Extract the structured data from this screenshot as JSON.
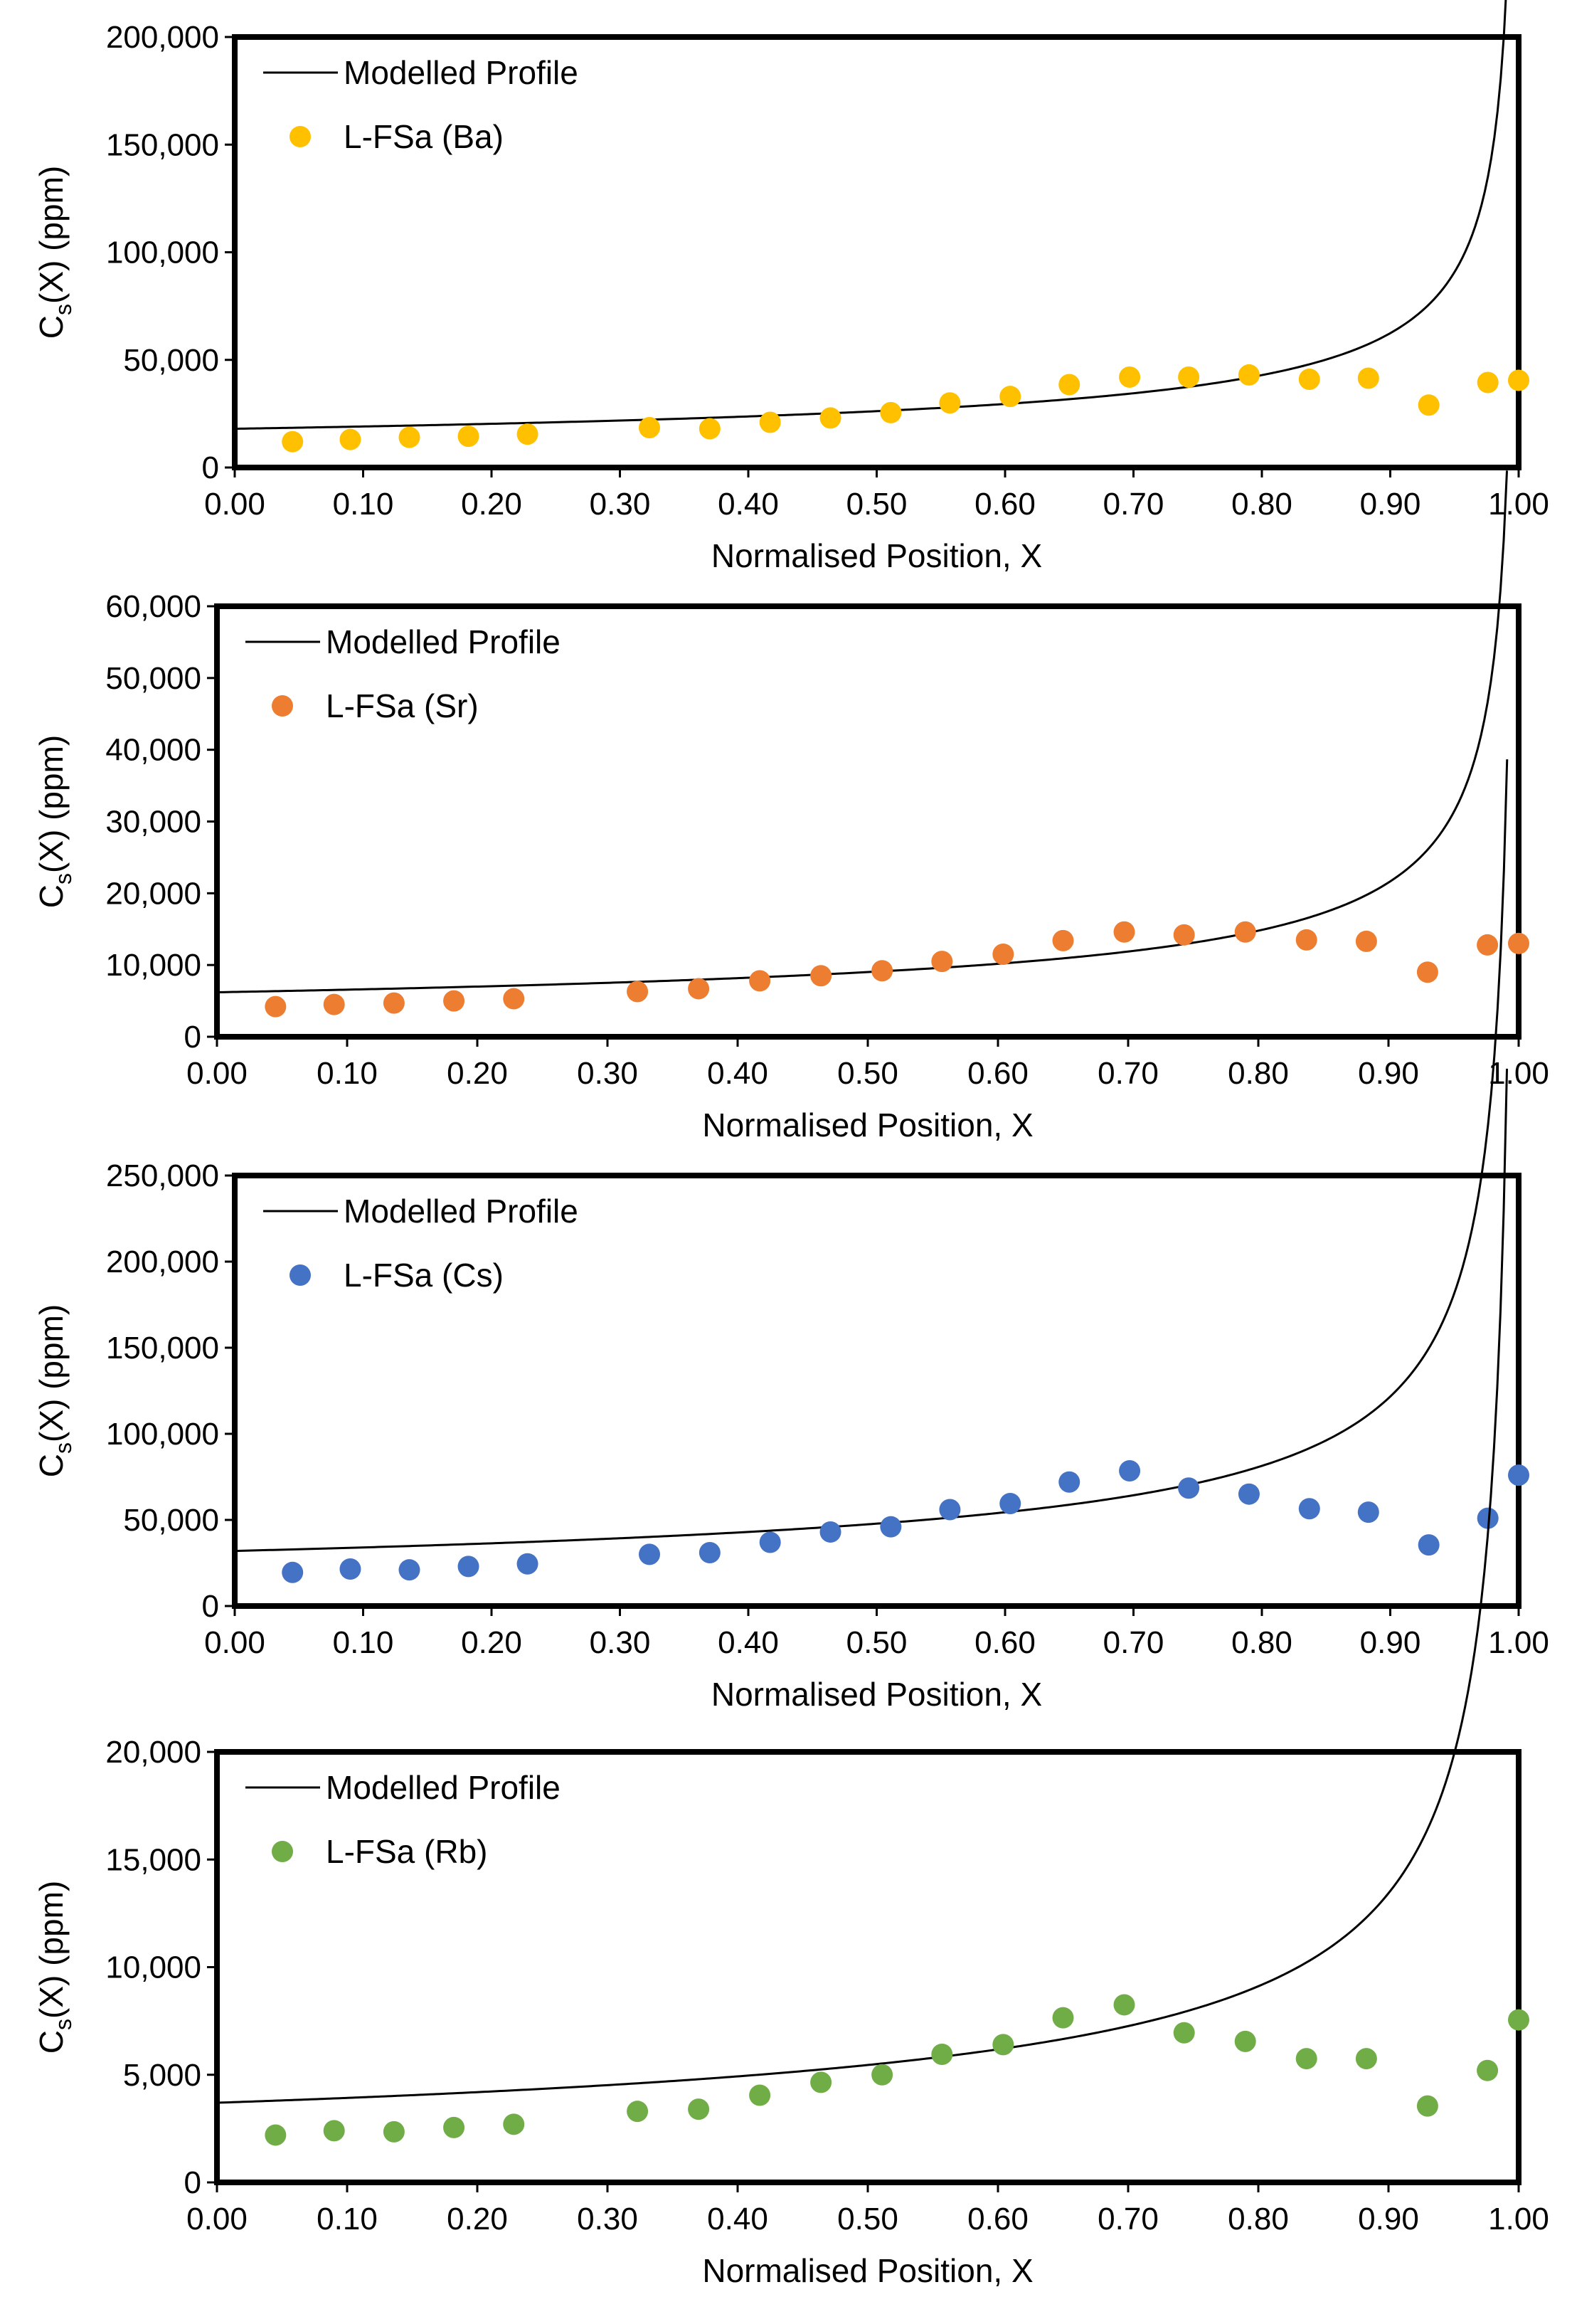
{
  "chart_data": [
    {
      "type": "scatter",
      "xlabel": "Normalised Position, X",
      "ylabel": "Cs(X) (ppm)",
      "ylabel_main": "C",
      "ylabel_sub": "s",
      "ylabel_rest": "(X) (ppm)",
      "xlim": [
        0,
        1
      ],
      "ylim": [
        0,
        200000
      ],
      "x_ticks": [
        "0.00",
        "0.10",
        "0.20",
        "0.30",
        "0.40",
        "0.50",
        "0.60",
        "0.70",
        "0.80",
        "0.90",
        "1.00"
      ],
      "y_ticks": [
        {
          "value": 0,
          "label": "0"
        },
        {
          "value": 50000,
          "label": "50,000"
        },
        {
          "value": 100000,
          "label": "100,000"
        },
        {
          "value": 150000,
          "label": "150,000"
        },
        {
          "value": 200000,
          "label": "200,000"
        }
      ],
      "legend": {
        "position": "top-left",
        "line_label": "Modelled Profile",
        "points_label": "L-FSa (Ba)"
      },
      "colors": {
        "points": "#FFC000",
        "line": "#000000"
      },
      "model": {
        "C0": 18000,
        "k": 0.46,
        "x_end": 0.991
      },
      "series": [
        {
          "name": "Modelled Profile",
          "kind": "line"
        },
        {
          "name": "L-FSa (Ba)",
          "kind": "scatter",
          "x": [
            0.045,
            0.09,
            0.136,
            0.182,
            0.228,
            0.323,
            0.37,
            0.417,
            0.464,
            0.511,
            0.557,
            0.604,
            0.65,
            0.697,
            0.743,
            0.79,
            0.837,
            0.883,
            0.93,
            0.976,
            1.0
          ],
          "y": [
            12000,
            13000,
            14000,
            14500,
            15500,
            18500,
            18000,
            21000,
            23000,
            25500,
            30000,
            33000,
            38500,
            42000,
            42000,
            43000,
            41000,
            41500,
            29000,
            39500,
            40500
          ]
        }
      ]
    },
    {
      "type": "scatter",
      "xlabel": "Normalised Position, X",
      "ylabel": "Cs(X) (ppm)",
      "ylabel_main": "C",
      "ylabel_sub": "s",
      "ylabel_rest": "(X) (ppm)",
      "xlim": [
        0,
        1
      ],
      "ylim": [
        0,
        60000
      ],
      "x_ticks": [
        "0.00",
        "0.10",
        "0.20",
        "0.30",
        "0.40",
        "0.50",
        "0.60",
        "0.70",
        "0.80",
        "0.90",
        "1.00"
      ],
      "y_ticks": [
        {
          "value": 0,
          "label": "0"
        },
        {
          "value": 10000,
          "label": "10,000"
        },
        {
          "value": 20000,
          "label": "20,000"
        },
        {
          "value": 30000,
          "label": "30,000"
        },
        {
          "value": 40000,
          "label": "40,000"
        },
        {
          "value": 50000,
          "label": "50,000"
        },
        {
          "value": 60000,
          "label": "60,000"
        }
      ],
      "legend": {
        "position": "top-left",
        "line_label": "Modelled Profile",
        "points_label": "L-FSa (Sr)"
      },
      "colors": {
        "points": "#ED7D31",
        "line": "#000000"
      },
      "model": {
        "C0": 6200,
        "k": 0.46,
        "x_end": 0.991
      },
      "series": [
        {
          "name": "Modelled Profile",
          "kind": "line"
        },
        {
          "name": "L-FSa (Sr)",
          "kind": "scatter",
          "x": [
            0.045,
            0.09,
            0.136,
            0.182,
            0.228,
            0.323,
            0.37,
            0.417,
            0.464,
            0.511,
            0.557,
            0.604,
            0.65,
            0.697,
            0.743,
            0.79,
            0.837,
            0.883,
            0.93,
            0.976,
            1.0
          ],
          "y": [
            4200,
            4500,
            4700,
            5000,
            5300,
            6300,
            6700,
            7800,
            8500,
            9200,
            10500,
            11500,
            13400,
            14600,
            14200,
            14600,
            13500,
            13300,
            9000,
            12800,
            13000
          ]
        }
      ]
    },
    {
      "type": "scatter",
      "xlabel": "Normalised Position, X",
      "ylabel": "Cs(X) (ppm)",
      "ylabel_main": "C",
      "ylabel_sub": "s",
      "ylabel_rest": "(X) (ppm)",
      "xlim": [
        0,
        1
      ],
      "ylim": [
        0,
        250000
      ],
      "x_ticks": [
        "0.00",
        "0.10",
        "0.20",
        "0.30",
        "0.40",
        "0.50",
        "0.60",
        "0.70",
        "0.80",
        "0.90",
        "1.00"
      ],
      "y_ticks": [
        {
          "value": 0,
          "label": "0"
        },
        {
          "value": 50000,
          "label": "50,000"
        },
        {
          "value": 100000,
          "label": "100,000"
        },
        {
          "value": 150000,
          "label": "150,000"
        },
        {
          "value": 200000,
          "label": "200,000"
        },
        {
          "value": 250000,
          "label": "250,000"
        }
      ],
      "legend": {
        "position": "top-left",
        "line_label": "Modelled Profile",
        "points_label": "L-FSa (Cs)"
      },
      "colors": {
        "points": "#4472C4",
        "line": "#000000"
      },
      "model": {
        "C0": 32000,
        "k": 0.42,
        "x_end": 0.991
      },
      "series": [
        {
          "name": "Modelled Profile",
          "kind": "line"
        },
        {
          "name": "L-FSa (Cs)",
          "kind": "scatter",
          "x": [
            0.045,
            0.09,
            0.136,
            0.182,
            0.228,
            0.323,
            0.37,
            0.417,
            0.464,
            0.511,
            0.557,
            0.604,
            0.65,
            0.697,
            0.743,
            0.79,
            0.837,
            0.883,
            0.93,
            0.976,
            1.0
          ],
          "y": [
            19500,
            21500,
            21000,
            23000,
            24500,
            30000,
            31000,
            37000,
            43000,
            46000,
            56000,
            59500,
            72000,
            78500,
            68500,
            65000,
            56500,
            54500,
            35500,
            51000,
            76000
          ]
        }
      ]
    },
    {
      "type": "scatter",
      "xlabel": "Normalised Position, X",
      "ylabel": "Cs(X) (ppm)",
      "ylabel_main": "C",
      "ylabel_sub": "s",
      "ylabel_rest": "(X) (ppm)",
      "xlim": [
        0,
        1
      ],
      "ylim": [
        0,
        20000
      ],
      "x_ticks": [
        "0.00",
        "0.10",
        "0.20",
        "0.30",
        "0.40",
        "0.50",
        "0.60",
        "0.70",
        "0.80",
        "0.90",
        "1.00"
      ],
      "y_ticks": [
        {
          "value": 0,
          "label": "0"
        },
        {
          "value": 5000,
          "label": "5,000"
        },
        {
          "value": 10000,
          "label": "10,000"
        },
        {
          "value": 15000,
          "label": "15,000"
        },
        {
          "value": 20000,
          "label": "20,000"
        }
      ],
      "legend": {
        "position": "top-left",
        "line_label": "Modelled Profile",
        "points_label": "L-FSa (Rb)"
      },
      "colors": {
        "points": "#70AD47",
        "line": "#000000"
      },
      "model": {
        "C0": 3700,
        "k": 0.44,
        "x_end": 0.991
      },
      "series": [
        {
          "name": "Modelled Profile",
          "kind": "line"
        },
        {
          "name": "L-FSa (Rb)",
          "kind": "scatter",
          "x": [
            0.045,
            0.09,
            0.136,
            0.182,
            0.228,
            0.323,
            0.37,
            0.417,
            0.464,
            0.511,
            0.557,
            0.604,
            0.65,
            0.697,
            0.743,
            0.79,
            0.837,
            0.883,
            0.93,
            0.976,
            1.0
          ],
          "y": [
            2200,
            2400,
            2350,
            2550,
            2700,
            3300,
            3400,
            4050,
            4650,
            5000,
            5950,
            6400,
            7650,
            8250,
            6950,
            6550,
            5750,
            5750,
            3550,
            5200,
            7550
          ]
        }
      ]
    }
  ]
}
